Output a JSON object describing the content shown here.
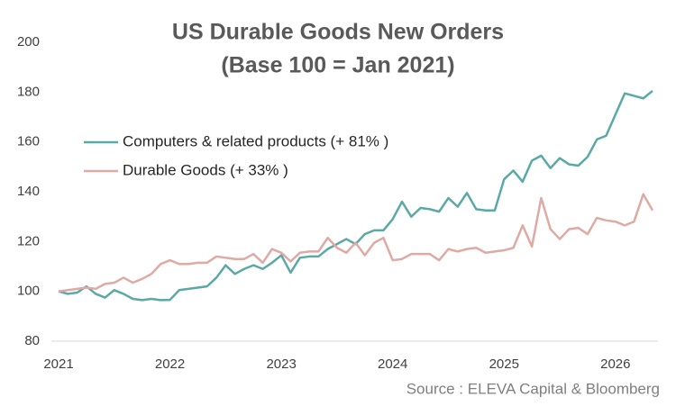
{
  "chart_data": {
    "type": "line",
    "title": "US Durable Goods New Orders",
    "subtitle": "(Base 100 = Jan 2021)",
    "source": "Source : ELEVA Capital & Bloomberg",
    "categories": [
      "2021",
      null,
      null,
      null,
      null,
      null,
      null,
      null,
      null,
      null,
      null,
      null,
      "2022",
      null,
      null,
      null,
      null,
      null,
      null,
      null,
      null,
      null,
      null,
      null,
      "2023",
      null,
      null,
      null,
      null,
      null,
      null,
      null,
      null,
      null,
      null,
      null,
      "2024",
      null,
      null,
      null,
      null,
      null,
      null,
      null,
      null,
      null,
      null,
      null,
      "2025",
      null,
      null,
      null,
      null,
      null,
      null,
      null,
      null,
      null,
      null,
      null,
      "2026",
      null,
      null,
      null,
      null
    ],
    "series": [
      {
        "name": "Computers & related products (+ 81% )",
        "color": "#5aa9a6",
        "values": [
          100,
          99,
          99.5,
          102,
          99,
          97.5,
          100.5,
          99,
          97,
          96.5,
          97,
          96.5,
          96.6,
          100.5,
          101,
          101.5,
          102,
          105.5,
          110.5,
          107,
          109,
          110.5,
          109,
          111.5,
          114.5,
          107.5,
          113.5,
          114,
          114,
          117,
          119,
          121,
          119,
          123,
          124.5,
          124.5,
          129,
          136,
          130,
          133.5,
          133,
          132,
          137.5,
          134,
          139.5,
          133,
          132.5,
          132.5,
          145,
          148.5,
          144,
          152.5,
          154.5,
          149.5,
          153.5,
          151,
          150.5,
          154,
          161,
          162.5,
          171,
          179.5,
          178.5,
          177.5,
          180.5
        ]
      },
      {
        "name": "Durable Goods (+ 33% )",
        "color": "#dfa9a4",
        "values": [
          100,
          100.5,
          101,
          101.5,
          101,
          103,
          103.5,
          105.5,
          103.5,
          105,
          107,
          111,
          112.5,
          111,
          111,
          111.5,
          111.5,
          114,
          113.5,
          113,
          113,
          115,
          111.5,
          117,
          115.5,
          112,
          115.5,
          116,
          116,
          121.5,
          117.5,
          115.5,
          119.5,
          114.5,
          119.5,
          121.5,
          112.5,
          113,
          115,
          115,
          115,
          112.5,
          117,
          116,
          117,
          117.5,
          115.5,
          116,
          116.5,
          117.5,
          126.5,
          118,
          137.5,
          125,
          121,
          125,
          125.5,
          123,
          129.5,
          128.5,
          128,
          126.5,
          128,
          139,
          132.5
        ]
      }
    ],
    "ylim": [
      80,
      200
    ],
    "yticks": [
      80,
      100,
      120,
      140,
      160,
      180,
      200
    ],
    "grid": false
  }
}
